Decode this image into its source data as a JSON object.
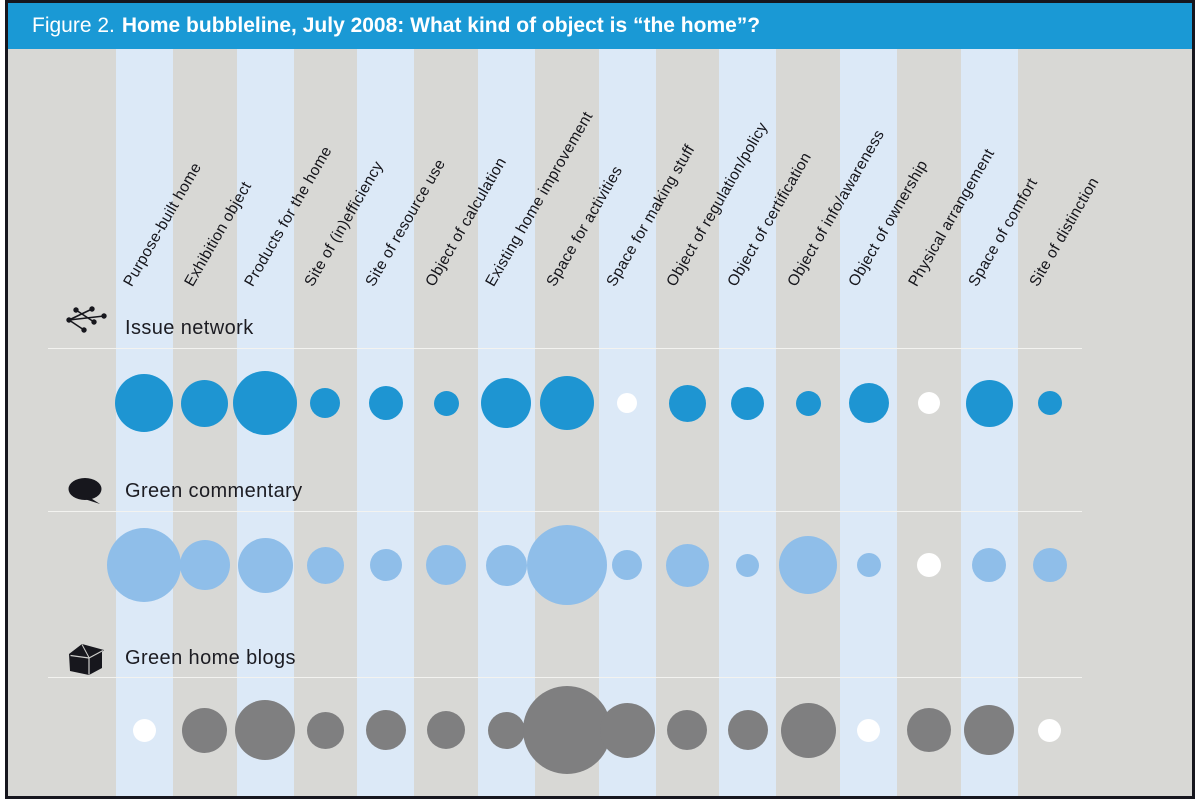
{
  "figure": {
    "label": "Figure 2.",
    "title": "Home bubbleline, July 2008: What kind of object is “the home”?"
  },
  "colors": {
    "header_bg": "#1a99d5",
    "frame_border": "#16161e",
    "background_gray": "#d8d8d5",
    "stripe_blue": "#dce9f7",
    "separator_line": "#f3f3f0",
    "empty_bubble": "#ffffff",
    "issue_network_bubble": "#1e95d2",
    "green_commentary_bubble": "#8fbee9",
    "green_home_blogs_bubble": "#7f7f80"
  },
  "chart_data": {
    "type": "bubbleline",
    "title": "Home bubbleline, July 2008: What kind of object is “the home”?",
    "unit": "bubble diameter in px; larger = more prominent; empty (white) = absent",
    "legend_position": "row headers on left",
    "grid": "alternating vertical stripes, blue on odd columns",
    "categories": [
      "Purpose-built home",
      "Exhibition object",
      "Products for the home",
      "Site of (in)efficiency",
      "Site of resource use",
      "Object of calculation",
      "Existing home improvement",
      "Space for activities",
      "Space for making stuff",
      "Object of regulation/policy",
      "Object of certification",
      "Object of info/awareness",
      "Object of ownership",
      "Physical arrangement",
      "Space of comfort",
      "Site of distinction"
    ],
    "series": [
      {
        "name": "Issue network",
        "icon": "network-icon",
        "color": "#1e95d2",
        "values": [
          {
            "size": 58
          },
          {
            "size": 47
          },
          {
            "size": 64
          },
          {
            "size": 30
          },
          {
            "size": 34
          },
          {
            "size": 25
          },
          {
            "size": 50
          },
          {
            "size": 54
          },
          {
            "size": 20,
            "empty": true
          },
          {
            "size": 37
          },
          {
            "size": 33
          },
          {
            "size": 25
          },
          {
            "size": 40
          },
          {
            "size": 22,
            "empty": true
          },
          {
            "size": 47
          },
          {
            "size": 24
          }
        ]
      },
      {
        "name": "Green commentary",
        "icon": "speech-bubble-icon",
        "color": "#8fbee9",
        "values": [
          {
            "size": 74
          },
          {
            "size": 50
          },
          {
            "size": 55
          },
          {
            "size": 37
          },
          {
            "size": 32
          },
          {
            "size": 40
          },
          {
            "size": 41
          },
          {
            "size": 80
          },
          {
            "size": 30
          },
          {
            "size": 43
          },
          {
            "size": 23
          },
          {
            "size": 58
          },
          {
            "size": 24
          },
          {
            "size": 24,
            "empty": true
          },
          {
            "size": 34
          },
          {
            "size": 34
          }
        ]
      },
      {
        "name": "Green home blogs",
        "icon": "house-icon",
        "color": "#7f7f80",
        "values": [
          {
            "size": 23,
            "empty": true
          },
          {
            "size": 45
          },
          {
            "size": 60
          },
          {
            "size": 37
          },
          {
            "size": 40
          },
          {
            "size": 38
          },
          {
            "size": 37
          },
          {
            "size": 88
          },
          {
            "size": 55
          },
          {
            "size": 40
          },
          {
            "size": 40
          },
          {
            "size": 55
          },
          {
            "size": 23,
            "empty": true
          },
          {
            "size": 44
          },
          {
            "size": 50
          },
          {
            "size": 23,
            "empty": true
          }
        ]
      }
    ]
  }
}
